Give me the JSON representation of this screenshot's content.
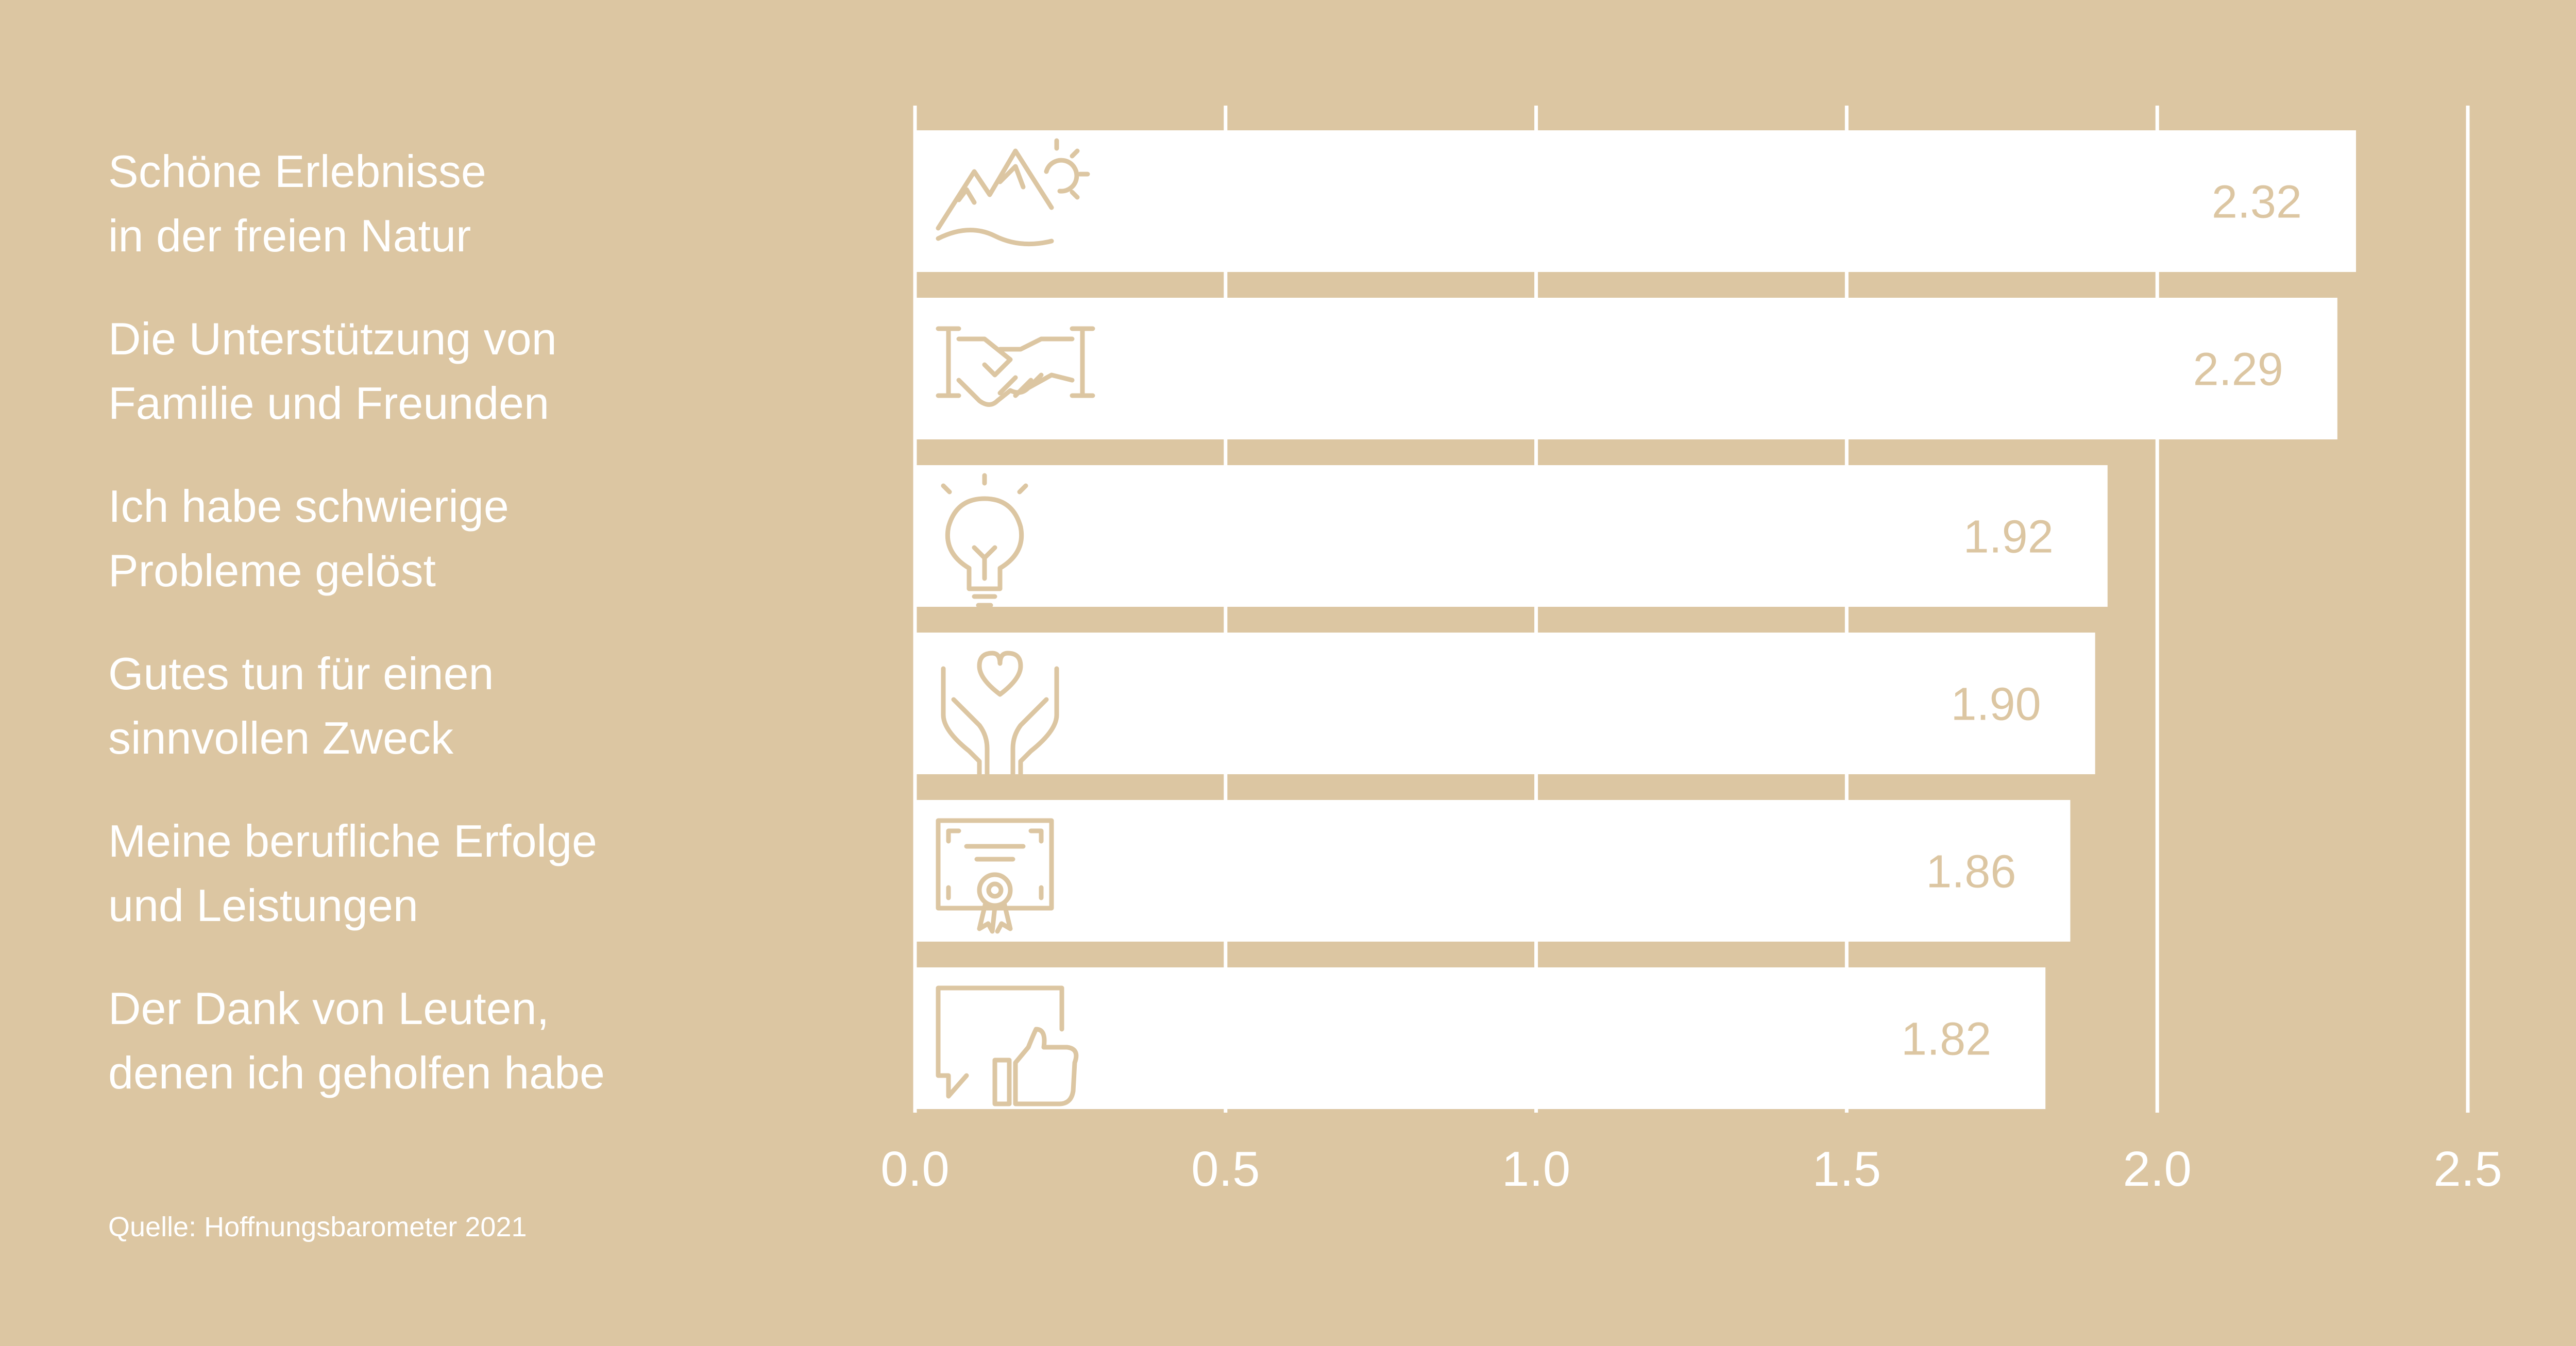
{
  "colors": {
    "background": "#DCC6A2",
    "bar": "#FFFFFF",
    "text": "#FFFFFF",
    "value_text": "#DCC6A2"
  },
  "source": "Quelle: Hoffnungsbarometer 2021",
  "chart_data": {
    "type": "bar",
    "orientation": "horizontal",
    "categories": [
      [
        "Schöne Erlebnisse",
        "in der freien Natur"
      ],
      [
        "Die Unterstützung von",
        "Familie und Freunden"
      ],
      [
        "Ich habe schwierige",
        "Probleme gelöst"
      ],
      [
        "Gutes tun für einen",
        "sinnvollen Zweck"
      ],
      [
        "Meine berufliche Erfolge",
        "und Leistungen"
      ],
      [
        "Der Dank von Leuten,",
        "denen ich geholfen habe"
      ]
    ],
    "values": [
      2.32,
      2.29,
      1.92,
      1.9,
      1.86,
      1.82
    ],
    "value_labels": [
      "2.32",
      "2.29",
      "1.92",
      "1.90",
      "1.86",
      "1.82"
    ],
    "icons": [
      "mountain-sun-icon",
      "handshake-icon",
      "lightbulb-icon",
      "heart-hands-icon",
      "certificate-icon",
      "thumbs-up-icon"
    ],
    "xlim": [
      0,
      2.5
    ],
    "xticks": [
      0,
      0.5,
      1,
      1.5,
      2,
      2.5
    ],
    "xtick_labels": [
      "0.0",
      "0.5",
      "1.0",
      "1.5",
      "2.0",
      "2.5"
    ],
    "grid": true
  }
}
